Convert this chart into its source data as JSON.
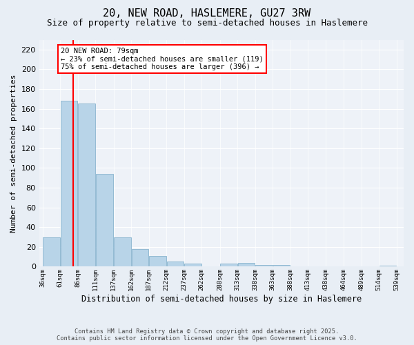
{
  "title": "20, NEW ROAD, HASLEMERE, GU27 3RW",
  "subtitle": "Size of property relative to semi-detached houses in Haslemere",
  "xlabel": "Distribution of semi-detached houses by size in Haslemere",
  "ylabel": "Number of semi-detached properties",
  "bar_values": [
    30,
    168,
    165,
    94,
    30,
    18,
    11,
    5,
    3,
    0,
    3,
    4,
    2,
    2,
    0,
    0,
    0,
    0,
    0,
    1
  ],
  "bin_edges": [
    36,
    61,
    86,
    111,
    137,
    162,
    187,
    212,
    237,
    262,
    288,
    313,
    338,
    363,
    388,
    413,
    438,
    464,
    489,
    514,
    539
  ],
  "bin_labels": [
    "36sqm",
    "61sqm",
    "86sqm",
    "111sqm",
    "137sqm",
    "162sqm",
    "187sqm",
    "212sqm",
    "237sqm",
    "262sqm",
    "288sqm",
    "313sqm",
    "338sqm",
    "363sqm",
    "388sqm",
    "413sqm",
    "438sqm",
    "464sqm",
    "489sqm",
    "514sqm",
    "539sqm"
  ],
  "bar_color": "#b8d4e8",
  "bar_edge_color": "#7aaac8",
  "vline_x": 79,
  "annotation_text": "20 NEW ROAD: 79sqm\n← 23% of semi-detached houses are smaller (119)\n75% of semi-detached houses are larger (396) →",
  "ylim": [
    0,
    230
  ],
  "yticks": [
    0,
    20,
    40,
    60,
    80,
    100,
    120,
    140,
    160,
    180,
    200,
    220
  ],
  "footer_line1": "Contains HM Land Registry data © Crown copyright and database right 2025.",
  "footer_line2": "Contains public sector information licensed under the Open Government Licence v3.0.",
  "bg_color": "#e8eef5",
  "plot_bg_color": "#eef2f8",
  "title_fontsize": 11,
  "subtitle_fontsize": 9,
  "ylabel_fontsize": 8,
  "xlabel_fontsize": 8.5
}
